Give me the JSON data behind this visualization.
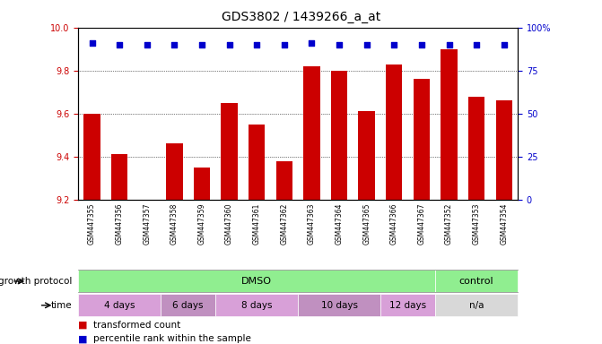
{
  "title": "GDS3802 / 1439266_a_at",
  "samples": [
    "GSM447355",
    "GSM447356",
    "GSM447357",
    "GSM447358",
    "GSM447359",
    "GSM447360",
    "GSM447361",
    "GSM447362",
    "GSM447363",
    "GSM447364",
    "GSM447365",
    "GSM447366",
    "GSM447367",
    "GSM447352",
    "GSM447353",
    "GSM447354"
  ],
  "bar_values": [
    9.6,
    9.41,
    9.2,
    9.46,
    9.35,
    9.65,
    9.55,
    9.38,
    9.82,
    9.8,
    9.61,
    9.83,
    9.76,
    9.9,
    9.68,
    9.66
  ],
  "percentile_values": [
    9.93,
    9.92,
    9.92,
    9.92,
    9.92,
    9.92,
    9.92,
    9.92,
    9.93,
    9.92,
    9.92,
    9.92,
    9.92,
    9.92,
    9.92,
    9.92
  ],
  "ylim": [
    9.2,
    10.0
  ],
  "yticks_left": [
    9.2,
    9.4,
    9.6,
    9.8,
    10
  ],
  "yticks_right": [
    0,
    25,
    50,
    75,
    100
  ],
  "bar_color": "#cc0000",
  "dot_color": "#0000cc",
  "bar_width": 0.6,
  "grid_color": "#000000",
  "background_color": "#ffffff",
  "plot_bg_color": "#ffffff",
  "growth_protocol_label": "growth protocol",
  "time_label": "time",
  "dmso_label": "DMSO",
  "control_label": "control",
  "time_groups": [
    {
      "label": "4 days",
      "start": 0,
      "end": 2
    },
    {
      "label": "6 days",
      "start": 3,
      "end": 4
    },
    {
      "label": "8 days",
      "start": 5,
      "end": 7
    },
    {
      "label": "10 days",
      "start": 8,
      "end": 10
    },
    {
      "label": "12 days",
      "start": 11,
      "end": 12
    },
    {
      "label": "n/a",
      "start": 13,
      "end": 15
    }
  ],
  "protocol_groups": [
    {
      "label": "DMSO",
      "start": 0,
      "end": 12,
      "color": "#90ee90"
    },
    {
      "label": "control",
      "start": 13,
      "end": 15,
      "color": "#90ee90"
    }
  ],
  "legend_transformed": "transformed count",
  "legend_percentile": "percentile rank within the sample",
  "tick_color_left": "#cc0000",
  "tick_color_right": "#0000cc",
  "label_color_left": "#cc0000",
  "label_color_right": "#0000cc"
}
